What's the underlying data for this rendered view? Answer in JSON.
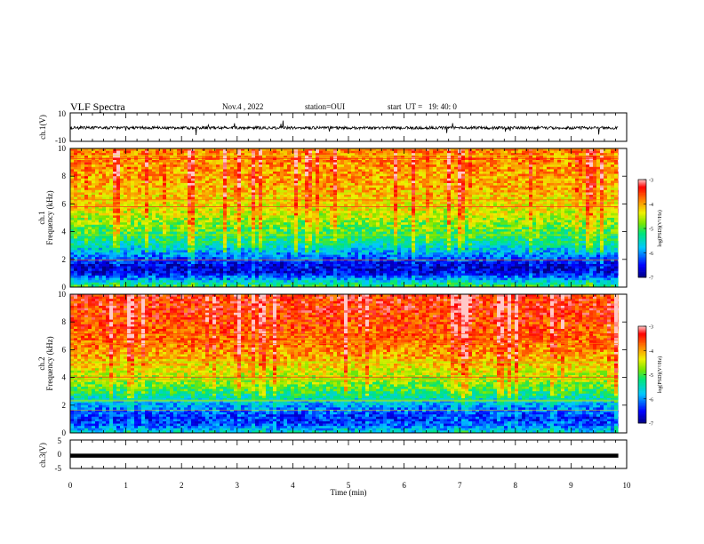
{
  "header": {
    "title": "VLF Spectra",
    "date": "Nov.4 , 2022",
    "station": "station=OUI",
    "start": "start  UT =   19: 40: 0"
  },
  "chart_data": [
    {
      "type": "line",
      "panel": "ch1-waveform",
      "ylabel": "ch.1(V)",
      "ylim": [
        -10,
        10
      ],
      "yticks": [
        "10",
        "-10"
      ],
      "x_range_min": [
        0,
        9.85
      ],
      "baseline_V": -0.5,
      "noise_amplitude_V": 2,
      "color": "#000000"
    },
    {
      "type": "heatmap",
      "panel": "ch1-spectrogram",
      "ylabel": "ch.1\nFrequency (kHz)",
      "ylim_kHz": [
        0,
        10
      ],
      "yticks": [
        "0",
        "2",
        "4",
        "6",
        "8",
        "10"
      ],
      "x_range_min": [
        0,
        9.85
      ],
      "colorbar": {
        "label": "log(PSD)(V²/Hz)",
        "range": [
          -7,
          -3
        ],
        "ticks": [
          "-3",
          "-4",
          "-5",
          "-6",
          "-7"
        ]
      },
      "profile_kHz_vs_logPSD": [
        [
          0.0,
          -5.0
        ],
        [
          0.5,
          -5.8
        ],
        [
          1.0,
          -6.6
        ],
        [
          1.5,
          -6.7
        ],
        [
          2.0,
          -6.3
        ],
        [
          2.5,
          -5.9
        ],
        [
          3.0,
          -5.5
        ],
        [
          3.5,
          -5.2
        ],
        [
          4.0,
          -5.0
        ],
        [
          5.0,
          -4.6
        ],
        [
          6.0,
          -4.3
        ],
        [
          7.0,
          -4.1
        ],
        [
          8.0,
          -4.0
        ],
        [
          9.0,
          -3.9
        ],
        [
          10.0,
          -3.9
        ]
      ]
    },
    {
      "type": "heatmap",
      "panel": "ch2-spectrogram",
      "ylabel": "ch.2\nFrequency (kHz)",
      "ylim_kHz": [
        0,
        10
      ],
      "yticks": [
        "0",
        "2",
        "4",
        "6",
        "8",
        "10"
      ],
      "x_range_min": [
        0,
        9.85
      ],
      "colorbar": {
        "label": "log(PSD)(V²/Hz)",
        "range": [
          -7,
          -3
        ],
        "ticks": [
          "-3",
          "-4",
          "-5",
          "-6",
          "-7"
        ]
      },
      "profile_kHz_vs_logPSD": [
        [
          0.0,
          -5.5
        ],
        [
          0.5,
          -6.2
        ],
        [
          1.0,
          -6.4
        ],
        [
          1.5,
          -6.2
        ],
        [
          2.0,
          -5.9
        ],
        [
          2.5,
          -5.5
        ],
        [
          3.0,
          -5.1
        ],
        [
          3.5,
          -4.8
        ],
        [
          4.0,
          -4.6
        ],
        [
          5.0,
          -4.2
        ],
        [
          6.0,
          -3.9
        ],
        [
          7.0,
          -3.7
        ],
        [
          8.0,
          -3.6
        ],
        [
          9.0,
          -3.5
        ],
        [
          10.0,
          -3.5
        ]
      ]
    },
    {
      "type": "line",
      "panel": "ch3-waveform",
      "ylabel": "ch.3(V)",
      "ylim": [
        -5,
        5
      ],
      "yticks": [
        "5",
        "0",
        "-5"
      ],
      "x_range_min": [
        0,
        9.85
      ],
      "value_V": -0.5,
      "color": "#000000"
    }
  ],
  "xaxis": {
    "label": "Time (min)",
    "range": [
      0,
      10
    ],
    "ticks": [
      "0",
      "1",
      "2",
      "3",
      "4",
      "5",
      "6",
      "7",
      "8",
      "9",
      "10"
    ]
  }
}
